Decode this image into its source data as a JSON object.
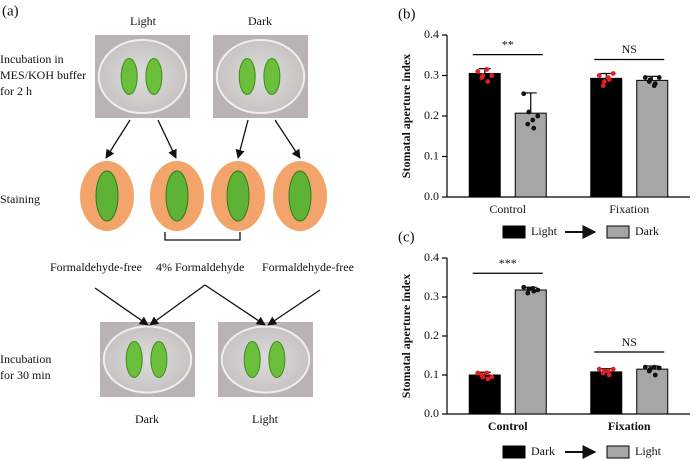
{
  "diagram": {
    "label": "(a)",
    "top_labels": [
      "Light",
      "Dark"
    ],
    "step1": [
      "Incubation in",
      "MES/KOH buffer",
      "for 2 h"
    ],
    "step2": "Staining",
    "treatments": [
      "Formaldehyde-free",
      "4% Formaldehyde",
      "Formaldehyde-free"
    ],
    "step3": [
      "Incubation",
      "for 30 min"
    ],
    "bottom_labels": [
      "Dark",
      "Light"
    ]
  },
  "chart_data": [
    {
      "type": "bar",
      "label": "(b)",
      "ylabel": "Stomatal aperture index",
      "categories": [
        "Control",
        "Fixation"
      ],
      "category_font_weight": "normal",
      "significance": [
        "**",
        "NS"
      ],
      "ylim": [
        0,
        0.4
      ],
      "yticks": [
        {
          "value": 0,
          "label": "0.0"
        },
        0.1,
        0.2,
        0.3,
        0.4
      ],
      "legend_arrow": true,
      "series": [
        {
          "name": "Light",
          "color": "#000000",
          "point_color": "#e02020",
          "values": [
            0.305,
            0.293
          ],
          "errors": [
            0.012,
            0.012
          ],
          "points": [
            [
              0.31,
              0.3,
              0.285,
              0.295,
              0.315,
              0.3
            ],
            [
              0.3,
              0.285,
              0.29,
              0.275,
              0.295,
              0.305
            ]
          ]
        },
        {
          "name": "Dark",
          "color": "#a6a6a6",
          "point_color": "#111111",
          "values": [
            0.207,
            0.288
          ],
          "errors": [
            0.05,
            0.01
          ],
          "points": [
            [
              0.255,
              0.21,
              0.17,
              0.18,
              0.19,
              0.2
            ],
            [
              0.295,
              0.29,
              0.28,
              0.285,
              0.275,
              0.295
            ]
          ]
        }
      ]
    },
    {
      "type": "bar",
      "label": "(c)",
      "ylabel": "Stomatal aperture index",
      "categories": [
        "Control",
        "Fixation"
      ],
      "category_font_weight": "bold",
      "significance": [
        "***",
        "NS"
      ],
      "ylim": [
        0,
        0.4
      ],
      "yticks": [
        {
          "value": 0,
          "label": "0.0"
        },
        0.1,
        0.2,
        0.3,
        0.4
      ],
      "legend_arrow": true,
      "series": [
        {
          "name": "Dark",
          "color": "#000000",
          "point_color": "#e02020",
          "values": [
            0.1,
            0.108
          ],
          "errors": [
            0.007,
            0.008
          ],
          "points": [
            [
              0.105,
              0.095,
              0.09,
              0.1,
              0.105,
              0.095
            ],
            [
              0.115,
              0.11,
              0.1,
              0.105,
              0.11,
              0.115
            ]
          ]
        },
        {
          "name": "Light",
          "color": "#a6a6a6",
          "point_color": "#111111",
          "values": [
            0.318,
            0.115
          ],
          "errors": [
            0.007,
            0.008
          ],
          "points": [
            [
              0.325,
              0.32,
              0.315,
              0.31,
              0.322,
              0.318
            ],
            [
              0.12,
              0.115,
              0.1,
              0.11,
              0.12,
              0.118
            ]
          ]
        }
      ]
    }
  ]
}
